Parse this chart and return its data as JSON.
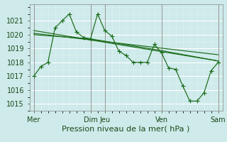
{
  "background_color": "#ceeaea",
  "plot_bg_color": "#ceeaea",
  "grid_color": "#ffffff",
  "subgrid_color": "#ddf4f4",
  "line_color": "#1a6b1a",
  "marker_color": "#1a6b1a",
  "xlabel": "Pression niveau de la mer( hPa )",
  "xlabel_fontsize": 8,
  "tick_fontsize": 7,
  "ylim": [
    1014.5,
    1022.2
  ],
  "yticks": [
    1015,
    1016,
    1017,
    1018,
    1019,
    1020,
    1021
  ],
  "xtick_labels": [
    "Mer",
    "Dim",
    "Jeu",
    "Ven",
    "Sam"
  ],
  "xtick_positions": [
    0,
    4,
    5,
    9,
    13
  ],
  "series1_x": [
    0.0,
    0.5,
    1.0,
    1.5,
    2.0,
    2.5,
    3.0,
    3.5,
    4.0,
    4.5,
    5.0,
    5.5,
    6.0,
    6.5,
    7.0,
    7.5,
    8.0,
    8.5,
    9.0,
    9.5,
    10.0,
    10.5,
    11.0,
    11.5,
    12.0,
    12.5,
    13.0
  ],
  "series1_y": [
    1017.0,
    1017.7,
    1018.0,
    1020.5,
    1021.0,
    1021.5,
    1020.2,
    1019.8,
    1019.7,
    1021.5,
    1020.3,
    1019.9,
    1018.8,
    1018.5,
    1018.0,
    1018.0,
    1018.0,
    1019.3,
    1018.7,
    1017.6,
    1017.5,
    1016.3,
    1015.2,
    1015.2,
    1015.8,
    1017.4,
    1018.0
  ],
  "series2_x": [
    0,
    13
  ],
  "series2_y": [
    1020.3,
    1018.1
  ],
  "series3_x": [
    0,
    13
  ],
  "series3_y": [
    1020.1,
    1018.55
  ],
  "series4_x": [
    0,
    4,
    9,
    13
  ],
  "series4_y": [
    1020.0,
    1019.7,
    1018.85,
    1018.1
  ],
  "vline_positions": [
    0,
    4,
    5,
    9,
    13
  ],
  "vline_color": "#666666",
  "spine_color": "#1a4a1a"
}
